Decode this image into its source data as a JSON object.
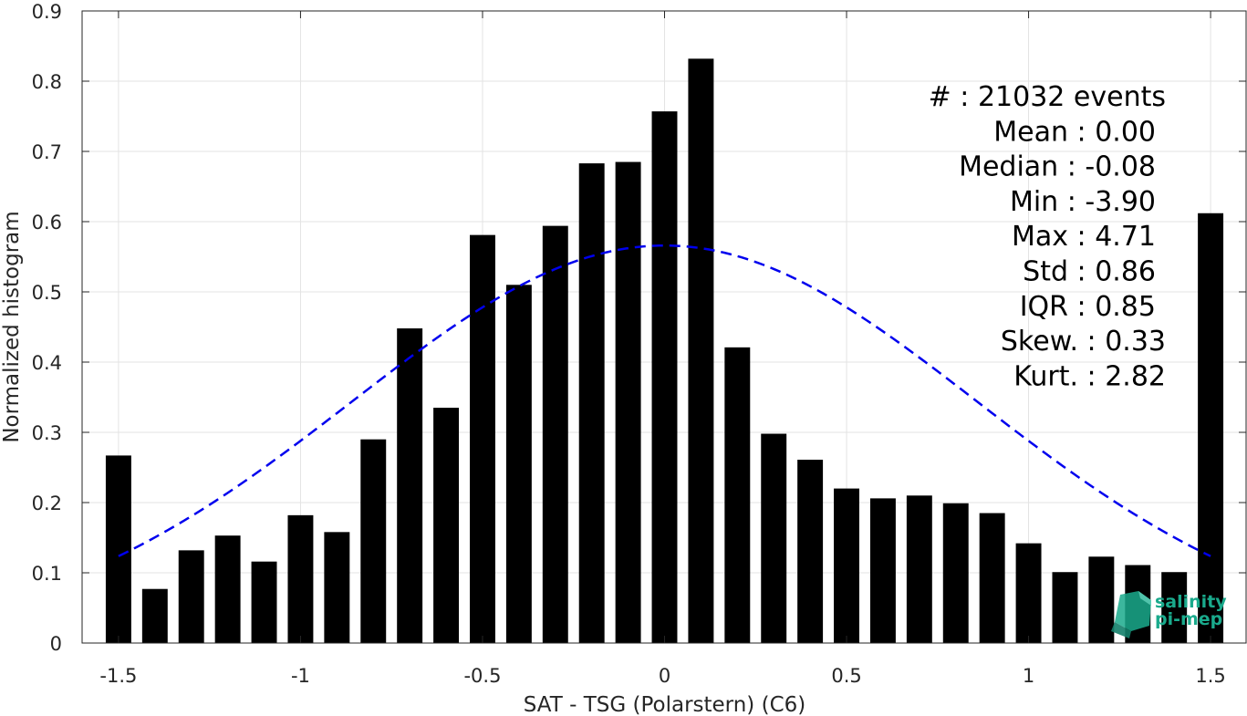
{
  "chart_data": {
    "type": "bar",
    "xlabel": "SAT - TSG (Polarstern) (C6)",
    "ylabel": "Normalized histogram",
    "xlim": [
      -1.6,
      1.6
    ],
    "ylim": [
      0,
      0.9
    ],
    "grid": true,
    "x_ticks": [
      -1.5,
      -1,
      -0.5,
      0,
      0.5,
      1,
      1.5
    ],
    "x_tick_labels": [
      "-1.5",
      "-1",
      "-0.5",
      "0",
      "0.5",
      "1",
      "1.5"
    ],
    "y_ticks": [
      0,
      0.1,
      0.2,
      0.3,
      0.4,
      0.5,
      0.6,
      0.7,
      0.8,
      0.9
    ],
    "y_tick_labels": [
      "0",
      "0.1",
      "0.2",
      "0.3",
      "0.4",
      "0.5",
      "0.6",
      "0.7",
      "0.8",
      "0.9"
    ],
    "bar_width": 0.07,
    "bar_color": "#000000",
    "bars": {
      "x": [
        -1.5,
        -1.4,
        -1.3,
        -1.2,
        -1.1,
        -1.0,
        -0.9,
        -0.8,
        -0.7,
        -0.6,
        -0.5,
        -0.4,
        -0.3,
        -0.2,
        -0.1,
        0.0,
        0.1,
        0.2,
        0.3,
        0.4,
        0.5,
        0.6,
        0.7,
        0.8,
        0.9,
        1.0,
        1.1,
        1.2,
        1.3,
        1.4,
        1.5
      ],
      "values": [
        0.267,
        0.077,
        0.132,
        0.153,
        0.116,
        0.182,
        0.158,
        0.29,
        0.448,
        0.335,
        0.581,
        0.51,
        0.594,
        0.683,
        0.685,
        0.757,
        0.832,
        0.421,
        0.298,
        0.261,
        0.22,
        0.206,
        0.21,
        0.199,
        0.185,
        0.142,
        0.101,
        0.123,
        0.111,
        0.101,
        0.612
      ]
    },
    "fit_curve": {
      "style": "dashed",
      "color": "#0000ee",
      "mean": 0.0,
      "std": 0.86,
      "peak": 0.566,
      "x_range": [
        -1.5,
        1.5
      ]
    },
    "stats": [
      {
        "label": "#  : 21032 events",
        "align": "end-outer"
      },
      {
        "label": "Mean : 0.00",
        "align": "end"
      },
      {
        "label": "Median : -0.08",
        "align": "end"
      },
      {
        "label": "Min : -3.90",
        "align": "end"
      },
      {
        "label": "Max : 4.71",
        "align": "end"
      },
      {
        "label": "Std : 0.86",
        "align": "end"
      },
      {
        "label": "IQR : 0.85",
        "align": "end"
      },
      {
        "label": "Skew. : 0.33",
        "align": "end-outer"
      },
      {
        "label": "Kurt. : 2.82",
        "align": "end-outer"
      }
    ]
  },
  "logo": {
    "line1": "salinity",
    "line2": "pi-mep",
    "color": "#1aaa8c"
  }
}
